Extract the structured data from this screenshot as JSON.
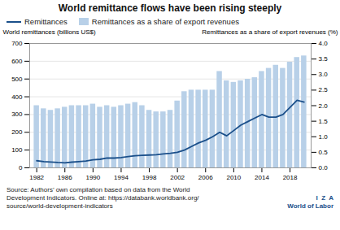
{
  "chart_data": {
    "type": "bar",
    "title": "World remittance flows have been rising steeply",
    "x": [
      1982,
      1983,
      1984,
      1985,
      1986,
      1987,
      1988,
      1989,
      1990,
      1991,
      1992,
      1993,
      1994,
      1995,
      1996,
      1997,
      1998,
      1999,
      2000,
      2001,
      2002,
      2003,
      2004,
      2005,
      2006,
      2007,
      2008,
      2009,
      2010,
      2011,
      2012,
      2013,
      2014,
      2015,
      2016,
      2017,
      2018,
      2019,
      2020
    ],
    "xlim": [
      1981,
      2021
    ],
    "xticks": [
      1982,
      1986,
      1990,
      1994,
      1998,
      2002,
      2006,
      2010,
      2014,
      2018
    ],
    "ylabel": "World remittances (billions US$)",
    "ylim": [
      0,
      700
    ],
    "yticks": [
      0,
      100,
      200,
      300,
      400,
      500,
      600,
      700
    ],
    "y2label": "Remittances as a share of export revenues (%)",
    "y2lim": [
      0,
      4.0
    ],
    "y2ticks": [
      {
        "value": 0,
        "label": "0.0"
      },
      0.5,
      {
        "value": 1,
        "label": "1.0"
      },
      1.5,
      {
        "value": 2,
        "label": "2.0"
      },
      2.5,
      {
        "value": 3,
        "label": "3.0"
      },
      3.5,
      {
        "value": 4,
        "label": "4.0"
      }
    ],
    "series": [
      {
        "name": "Remittances",
        "type": "line",
        "color": "#1a4f8a",
        "values": [
          40,
          35,
          33,
          30,
          28,
          32,
          35,
          38,
          45,
          48,
          55,
          55,
          58,
          63,
          68,
          70,
          72,
          74,
          78,
          82,
          88,
          100,
          120,
          140,
          155,
          175,
          200,
          180,
          210,
          240,
          260,
          280,
          300,
          285,
          285,
          300,
          340,
          380,
          370
        ]
      },
      {
        "name": "Remittances as a share of export revenues",
        "type": "bar",
        "axis": "y2",
        "color": "#b8d0e8",
        "values": [
          2.0,
          1.9,
          1.85,
          1.9,
          1.95,
          2.0,
          2.0,
          2.0,
          2.05,
          1.95,
          2.0,
          1.95,
          2.0,
          2.05,
          2.1,
          2.0,
          1.85,
          1.8,
          1.8,
          1.85,
          2.15,
          2.45,
          2.5,
          2.5,
          2.5,
          2.5,
          3.1,
          2.8,
          2.75,
          2.8,
          2.85,
          2.9,
          3.1,
          3.2,
          3.3,
          3.2,
          3.4,
          3.55,
          3.6
        ]
      }
    ],
    "grid": true,
    "legend": "upper left",
    "annotations": [
      "Source: Authors’ own compilation based on data from the World\nDevelopment Indicators. Online at: https://databank.worldbank.org/\nsource/world-development-indicators",
      "I  Z  A",
      "World of Labor"
    ]
  }
}
